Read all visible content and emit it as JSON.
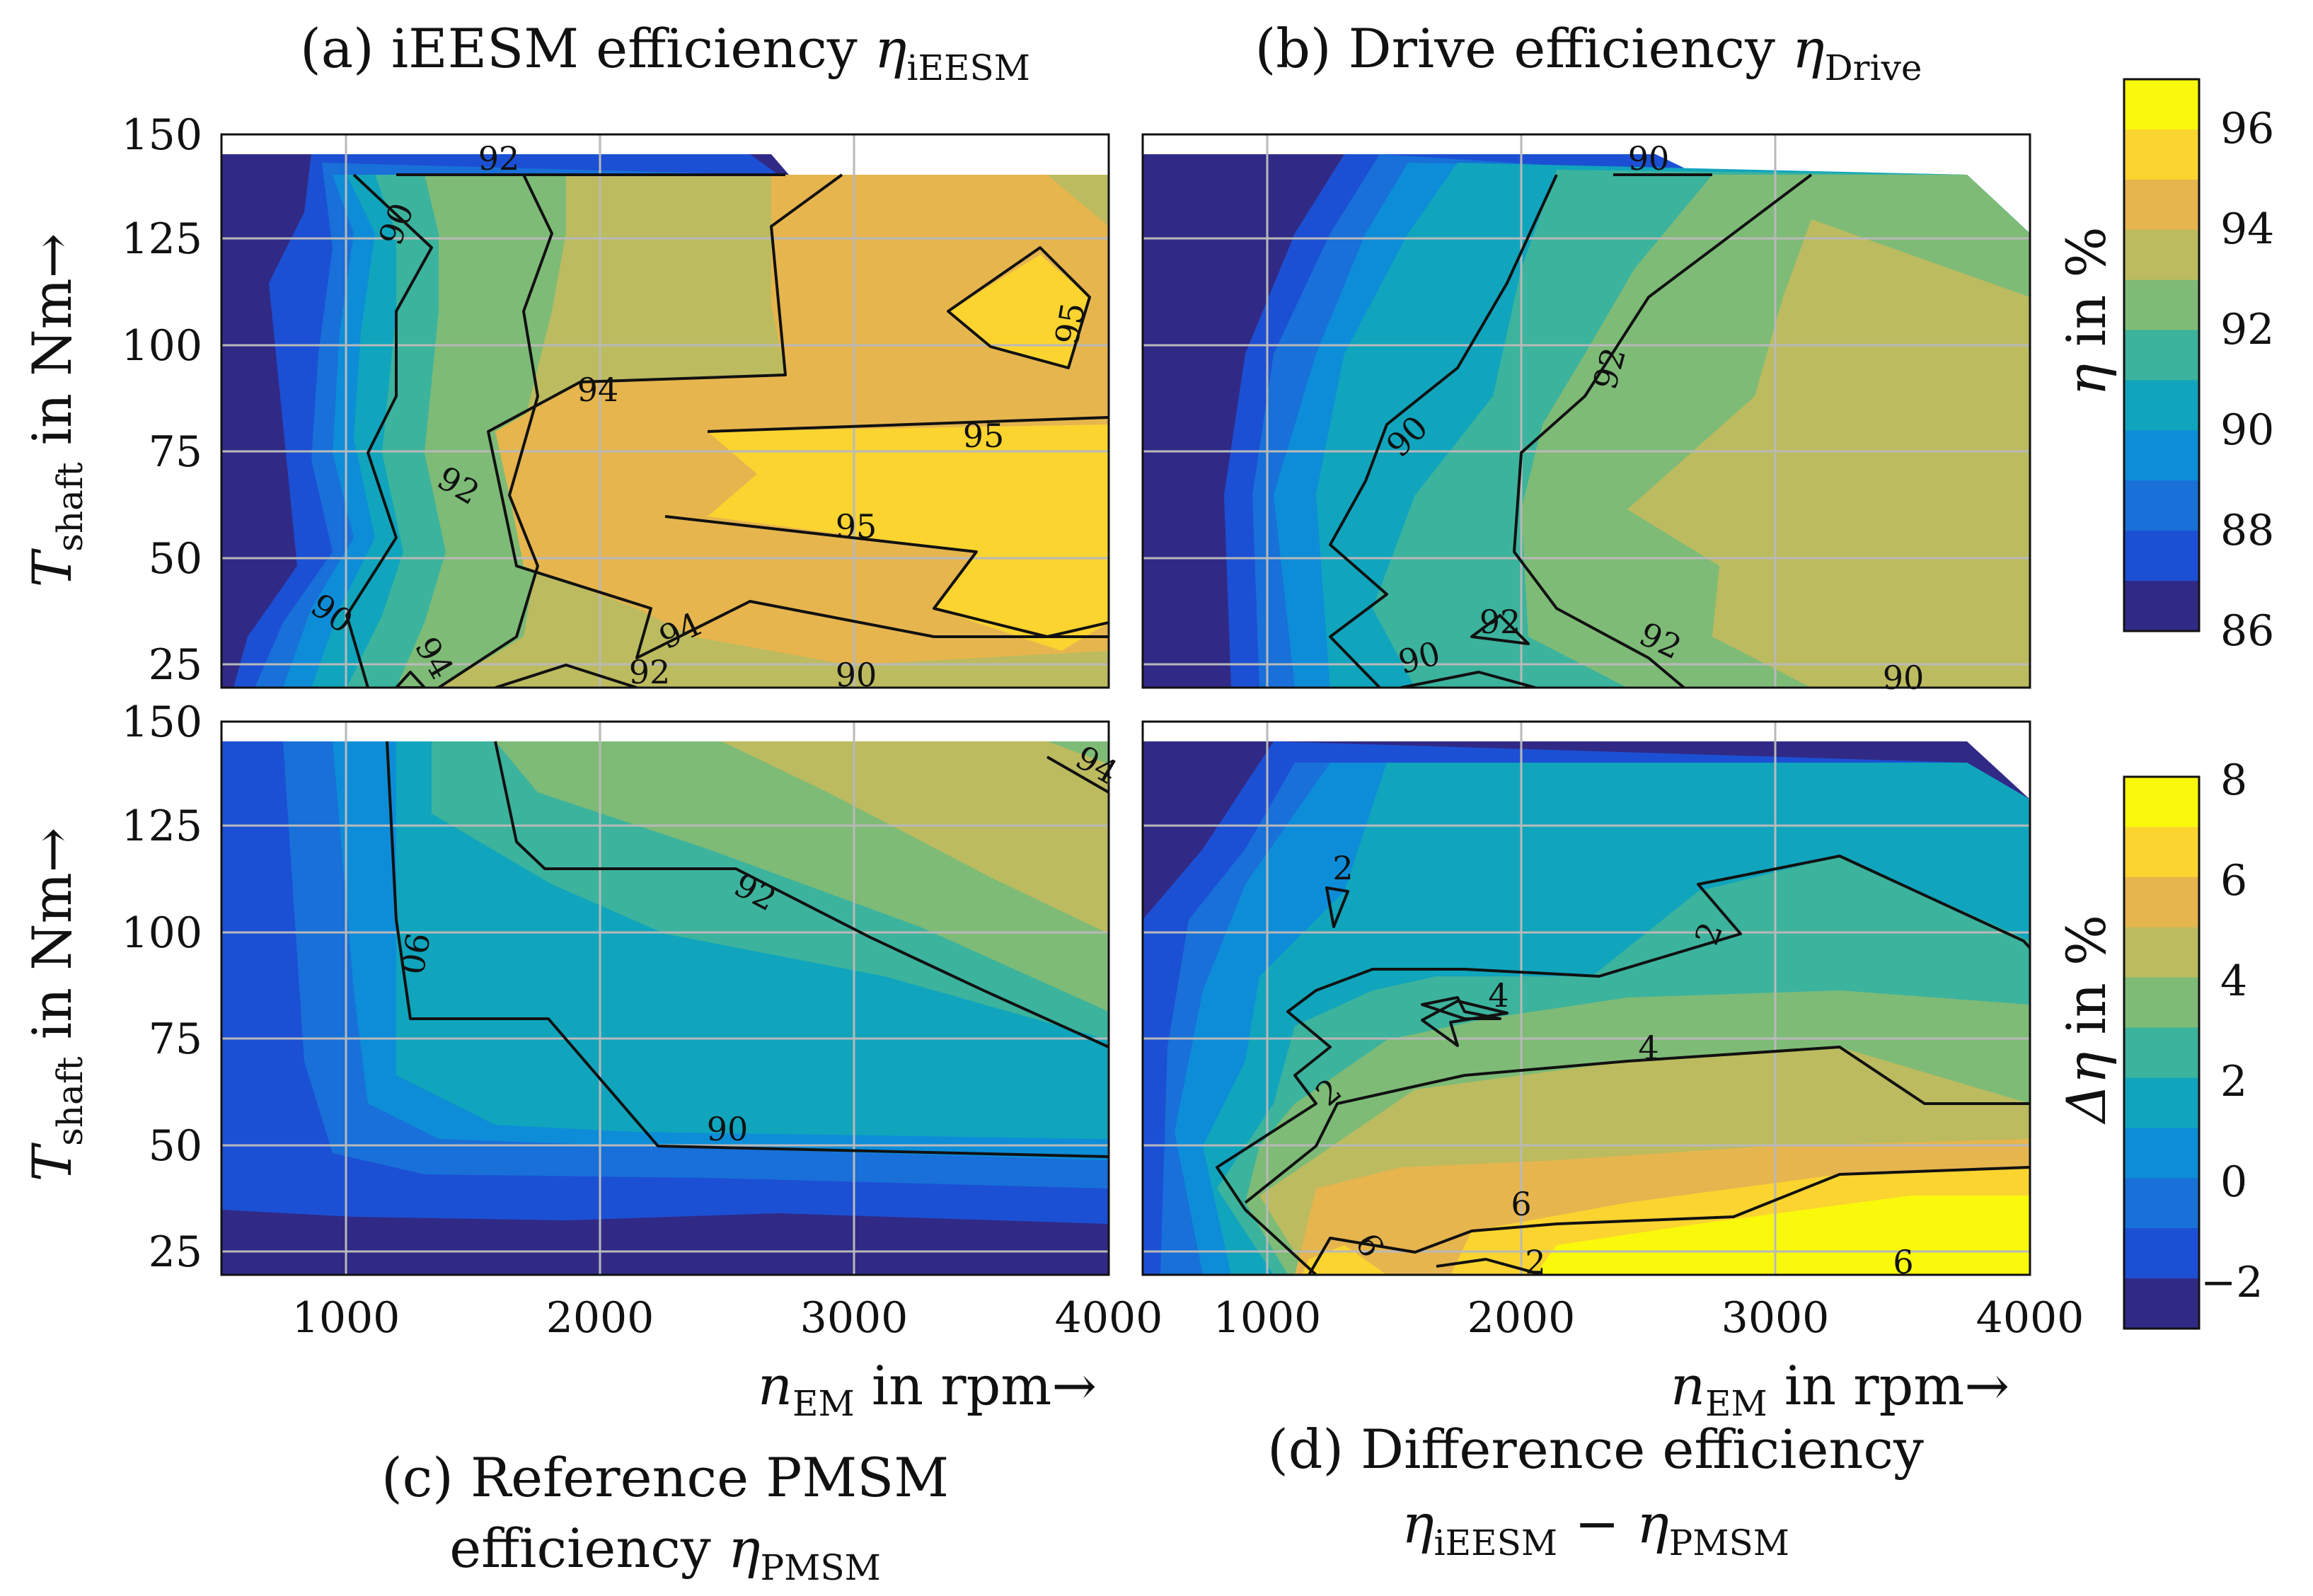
{
  "chart_data": [
    {
      "panel": "a",
      "type": "contour",
      "title_main": "(a) iEESM efficiency ",
      "title_var": "η",
      "title_sub": "iEESM",
      "xlabel": "",
      "ylabel_main": "T",
      "ylabel_sub": "shaft",
      "ylabel_rest": " in Nm→",
      "xlim": [
        500,
        4000
      ],
      "ylim": [
        20,
        150
      ],
      "xticks": [
        1000,
        2000,
        3000,
        4000
      ],
      "yticks": [
        25,
        50,
        75,
        100,
        125,
        150
      ],
      "contour_labels": [
        "92",
        "90",
        "94",
        "95",
        "95",
        "95",
        "92",
        "90",
        "94",
        "94",
        "92",
        "90"
      ],
      "value_range_percent": [
        86,
        96.5
      ]
    },
    {
      "panel": "b",
      "type": "contour",
      "title_main": "(b) Drive efficiency ",
      "title_var": "η",
      "title_sub": "Drive",
      "xlim": [
        500,
        4000
      ],
      "ylim": [
        20,
        150
      ],
      "xticks": [
        1000,
        2000,
        3000,
        4000
      ],
      "contour_labels": [
        "90",
        "92",
        "90",
        "92",
        "92",
        "90",
        "90"
      ],
      "value_range_percent": [
        86,
        94
      ]
    },
    {
      "panel": "c",
      "type": "contour",
      "caption_line1": "(c) Reference PMSM",
      "caption_line2_main": "efficiency ",
      "caption_line2_var": "η",
      "caption_line2_sub": "PMSM",
      "xlabel_var": "n",
      "xlabel_sub": "EM",
      "xlabel_rest": " in rpm→",
      "ylabel_main": "T",
      "ylabel_sub": "shaft",
      "ylabel_rest": " in Nm→",
      "xlim": [
        500,
        4000
      ],
      "ylim": [
        20,
        150
      ],
      "xticks": [
        1000,
        2000,
        3000,
        4000
      ],
      "yticks": [
        25,
        50,
        75,
        100,
        125,
        150
      ],
      "contour_labels": [
        "94",
        "92",
        "90",
        "90"
      ],
      "value_range_percent": [
        86,
        94.5
      ]
    },
    {
      "panel": "d",
      "type": "contour",
      "caption_line1": "(d) Difference efficiency",
      "caption_line2_a": "η",
      "caption_line2_a_sub": "iEESM",
      "caption_line2_mid": " − ",
      "caption_line2_b": "η",
      "caption_line2_b_sub": "PMSM",
      "xlabel_var": "n",
      "xlabel_sub": "EM",
      "xlabel_rest": " in rpm→",
      "xlim": [
        500,
        4000
      ],
      "ylim": [
        20,
        150
      ],
      "xticks": [
        1000,
        2000,
        3000,
        4000
      ],
      "contour_labels": [
        "2",
        "2",
        "4",
        "4",
        "2",
        "6",
        "6",
        "6",
        "2"
      ],
      "value_range_percent": [
        -3,
        8
      ]
    }
  ],
  "colorbars": [
    {
      "label_var": "η",
      "label_rest": " in %",
      "ticks": [
        "96",
        "94",
        "92",
        "90",
        "88",
        "86"
      ],
      "range": [
        86,
        97
      ],
      "colors": [
        "#f9f90c",
        "#fbd430",
        "#e6b54e",
        "#bcbb5f",
        "#7ebb77",
        "#3cb39d",
        "#10a5bd",
        "#0d8dd8",
        "#1870d8",
        "#1c50d4",
        "#302a86"
      ]
    },
    {
      "label_var": "Δη",
      "label_rest": " in %",
      "ticks": [
        "8",
        "6",
        "4",
        "2",
        "0",
        "−2"
      ],
      "range": [
        -3,
        8
      ],
      "colors": [
        "#f9f90c",
        "#fbd430",
        "#e6b54e",
        "#bcbb5f",
        "#7ebb77",
        "#3cb39d",
        "#10a5bd",
        "#0d8dd8",
        "#1870d8",
        "#1c50d4",
        "#302a86"
      ]
    }
  ]
}
